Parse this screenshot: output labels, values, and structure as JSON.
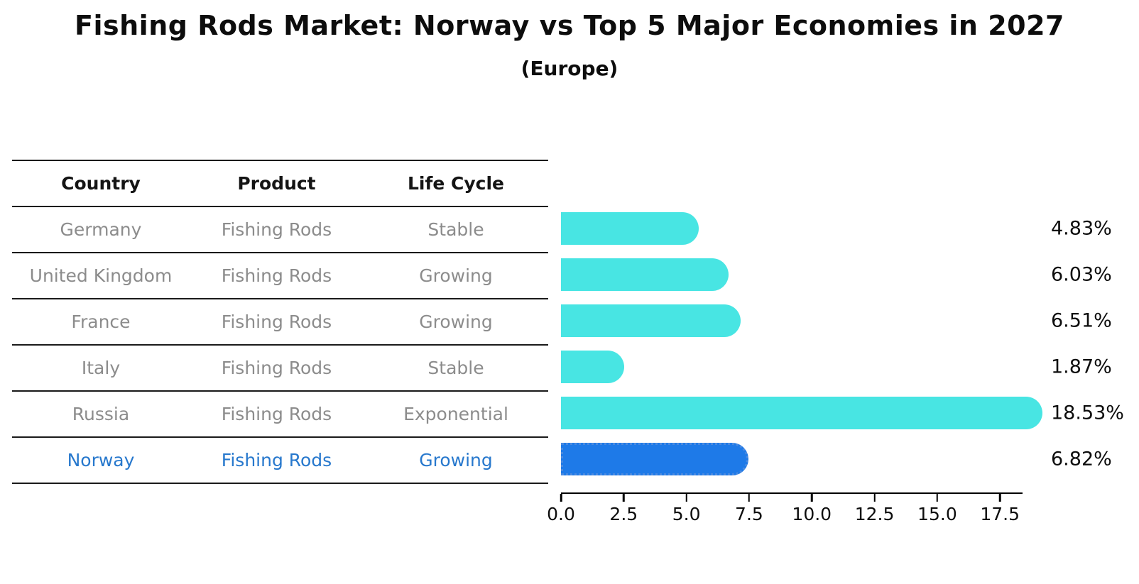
{
  "title": "Fishing Rods Market: Norway vs Top 5 Major Economies in 2027",
  "subtitle": "(Europe)",
  "table": {
    "headers": [
      "Country",
      "Product",
      "Life Cycle"
    ],
    "rows": [
      {
        "country": "Germany",
        "product": "Fishing Rods",
        "life_cycle": "Stable",
        "highlight": false
      },
      {
        "country": "United Kingdom",
        "product": "Fishing Rods",
        "life_cycle": "Growing",
        "highlight": false
      },
      {
        "country": "France",
        "product": "Fishing Rods",
        "life_cycle": "Growing",
        "highlight": false
      },
      {
        "country": "Italy",
        "product": "Fishing Rods",
        "life_cycle": "Stable",
        "highlight": false
      },
      {
        "country": "Russia",
        "product": "Fishing Rods",
        "life_cycle": "Exponential",
        "highlight": false
      },
      {
        "country": "Norway",
        "product": "Fishing Rods",
        "life_cycle": "Growing",
        "highlight": true
      }
    ]
  },
  "chart_data": {
    "type": "bar",
    "orientation": "horizontal",
    "title": "Fishing Rods Market: Norway vs Top 5 Major Economies in 2027 (Europe)",
    "categories": [
      "Germany",
      "United Kingdom",
      "France",
      "Italy",
      "Russia",
      "Norway"
    ],
    "values": [
      4.83,
      6.03,
      6.51,
      1.87,
      18.53,
      6.82
    ],
    "value_labels": [
      "4.83%",
      "6.03%",
      "6.51%",
      "1.87%",
      "18.53%",
      "6.82%"
    ],
    "x_ticks": [
      "0.0",
      "2.5",
      "5.0",
      "7.5",
      "10.0",
      "12.5",
      "15.0",
      "17.5"
    ],
    "xlim": [
      0,
      18.4
    ],
    "grid": false,
    "legend": false,
    "bar_color": "#48e5e3",
    "highlight_color": "#1e7ae8",
    "highlight_index": 5,
    "highlight_text_color": "#2778cd"
  }
}
